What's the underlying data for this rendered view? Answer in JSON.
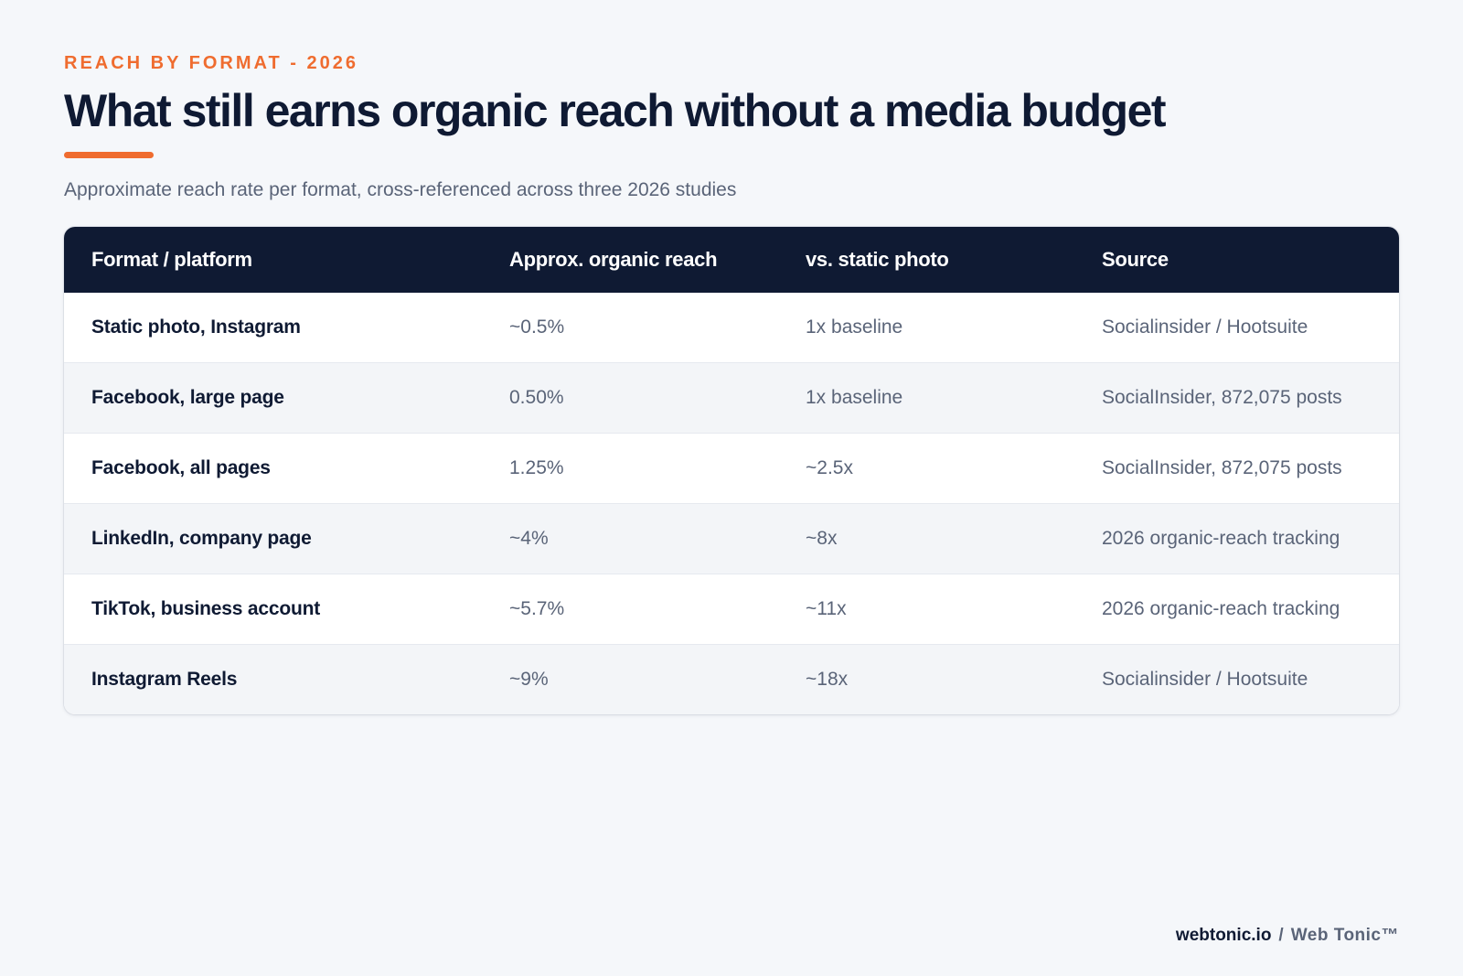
{
  "eyebrow": "REACH BY FORMAT - 2026",
  "title": "What still earns organic reach without a media budget",
  "subtitle": "Approximate reach rate per format, cross-referenced across three 2026 studies",
  "table": {
    "headers": [
      "Format / platform",
      "Approx. organic reach",
      "vs. static photo",
      "Source"
    ],
    "rows": [
      {
        "format": "Static photo, Instagram",
        "reach": "~0.5%",
        "vs": "1x baseline",
        "source": "Socialinsider / Hootsuite"
      },
      {
        "format": "Facebook, large page",
        "reach": "0.50%",
        "vs": "1x baseline",
        "source": "SocialInsider, 872,075 posts"
      },
      {
        "format": "Facebook, all pages",
        "reach": "1.25%",
        "vs": "~2.5x",
        "source": "SocialInsider, 872,075 posts"
      },
      {
        "format": "LinkedIn, company page",
        "reach": "~4%",
        "vs": "~8x",
        "source": "2026 organic-reach tracking"
      },
      {
        "format": "TikTok, business account",
        "reach": "~5.7%",
        "vs": "~11x",
        "source": "2026 organic-reach tracking"
      },
      {
        "format": "Instagram Reels",
        "reach": "~9%",
        "vs": "~18x",
        "source": "Socialinsider / Hootsuite"
      }
    ]
  },
  "footer": {
    "site": "webtonic.io",
    "separator": "/",
    "brand": "Web Tonic™"
  },
  "colors": {
    "accent": "#ef6c2f",
    "navy": "#0f1a33",
    "muted": "#5a6478",
    "background": "#f5f7fa"
  }
}
